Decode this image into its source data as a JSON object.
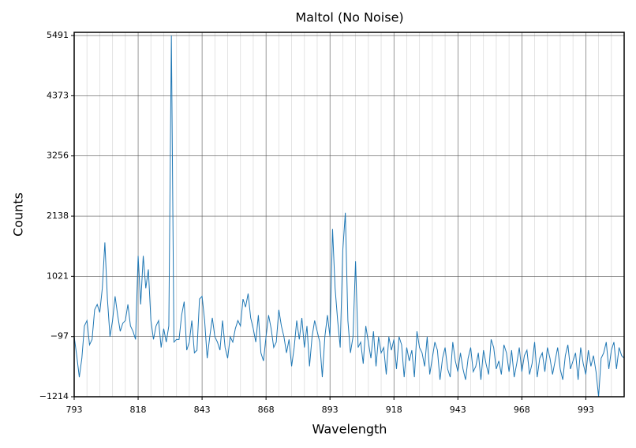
{
  "chart_data": {
    "type": "line",
    "title": "Maltol (No Noise)",
    "x_label": "Wavelength",
    "y_label": "Counts",
    "xlim": [
      793,
      1008
    ],
    "ylim": [
      -1214,
      5550
    ],
    "xticks": [
      793,
      818,
      843,
      868,
      893,
      918,
      943,
      968,
      993
    ],
    "xminorticks": [
      798,
      803,
      808,
      813,
      823,
      828,
      833,
      838,
      848,
      853,
      858,
      863,
      873,
      878,
      883,
      888,
      898,
      903,
      908,
      913,
      923,
      928,
      933,
      938,
      948,
      953,
      958,
      963,
      973,
      978,
      983,
      988,
      998,
      1003
    ],
    "yticks": [
      {
        "value": -1214,
        "label": "−1214"
      },
      {
        "value": -97,
        "label": "−97"
      },
      1021,
      2138,
      3256,
      4373,
      5491
    ],
    "grid": true,
    "x": [
      793,
      794,
      795,
      796,
      797,
      798,
      799,
      800,
      801,
      802,
      803,
      804,
      805,
      806,
      807,
      808,
      809,
      810,
      811,
      812,
      813,
      814,
      815,
      816,
      817,
      818,
      819,
      820,
      821,
      822,
      823,
      824,
      825,
      826,
      827,
      828,
      829,
      830,
      831,
      832,
      833,
      834,
      835,
      836,
      837,
      838,
      839,
      840,
      841,
      842,
      843,
      844,
      845,
      846,
      847,
      848,
      849,
      850,
      851,
      852,
      853,
      854,
      855,
      856,
      857,
      858,
      859,
      860,
      861,
      862,
      863,
      864,
      865,
      866,
      867,
      868,
      869,
      870,
      871,
      872,
      873,
      874,
      875,
      876,
      877,
      878,
      879,
      880,
      881,
      882,
      883,
      884,
      885,
      886,
      887,
      888,
      889,
      890,
      891,
      892,
      893,
      894,
      895,
      896,
      897,
      898,
      899,
      900,
      901,
      902,
      903,
      904,
      905,
      906,
      907,
      908,
      909,
      910,
      911,
      912,
      913,
      914,
      915,
      916,
      917,
      918,
      919,
      920,
      921,
      922,
      923,
      924,
      925,
      926,
      927,
      928,
      929,
      930,
      931,
      932,
      933,
      934,
      935,
      936,
      937,
      938,
      939,
      940,
      941,
      942,
      943,
      944,
      945,
      946,
      947,
      948,
      949,
      950,
      951,
      952,
      953,
      954,
      955,
      956,
      957,
      958,
      959,
      960,
      961,
      962,
      963,
      964,
      965,
      966,
      967,
      968,
      969,
      970,
      971,
      972,
      973,
      974,
      975,
      976,
      977,
      978,
      979,
      980,
      981,
      982,
      983,
      984,
      985,
      986,
      987,
      988,
      989,
      990,
      991,
      992,
      993,
      994,
      995,
      996,
      997,
      998,
      999,
      1000,
      1001,
      1002,
      1003,
      1004,
      1005,
      1006,
      1007,
      1008
    ],
    "series": [
      {
        "color": "#1f77b4",
        "values": [
          -100,
          -450,
          -850,
          -500,
          100,
          200,
          -250,
          -150,
          400,
          500,
          350,
          800,
          1650,
          600,
          -100,
          200,
          650,
          300,
          0,
          150,
          200,
          500,
          100,
          0,
          -150,
          1400,
          500,
          1400,
          800,
          1150,
          200,
          -150,
          100,
          200,
          -300,
          50,
          -200,
          100,
          5491,
          -200,
          -150,
          -150,
          300,
          550,
          -350,
          -200,
          200,
          -400,
          -350,
          600,
          650,
          200,
          -500,
          -100,
          250,
          -100,
          -200,
          -350,
          200,
          -300,
          -500,
          -100,
          -200,
          50,
          200,
          100,
          600,
          450,
          700,
          250,
          50,
          -200,
          300,
          -400,
          -550,
          -100,
          300,
          50,
          -300,
          -200,
          400,
          100,
          -100,
          -400,
          -150,
          -650,
          -300,
          200,
          -150,
          250,
          -300,
          100,
          -650,
          -100,
          200,
          0,
          -200,
          -850,
          -100,
          300,
          -100,
          1900,
          800,
          200,
          -300,
          1500,
          2200,
          200,
          -400,
          -100,
          1300,
          -300,
          -200,
          -600,
          100,
          -200,
          -500,
          0,
          -650,
          -100,
          -400,
          -300,
          -800,
          -100,
          -350,
          -150,
          -700,
          -100,
          -250,
          -850,
          -300,
          -550,
          -350,
          -850,
          0,
          -300,
          -400,
          -650,
          -100,
          -800,
          -500,
          -200,
          -350,
          -900,
          -500,
          -300,
          -700,
          -850,
          -200,
          -550,
          -750,
          -400,
          -700,
          -900,
          -500,
          -300,
          -750,
          -650,
          -400,
          -900,
          -350,
          -600,
          -800,
          -150,
          -300,
          -700,
          -550,
          -800,
          -250,
          -400,
          -750,
          -350,
          -850,
          -600,
          -300,
          -750,
          -450,
          -350,
          -800,
          -600,
          -200,
          -850,
          -500,
          -400,
          -750,
          -300,
          -500,
          -800,
          -550,
          -300,
          -700,
          -900,
          -450,
          -250,
          -700,
          -550,
          -400,
          -900,
          -300,
          -600,
          -800,
          -350,
          -650,
          -450,
          -750,
          -1214,
          -500,
          -400,
          -200,
          -700,
          -350,
          -200,
          -700,
          -300,
          -450,
          -500
        ]
      }
    ]
  }
}
